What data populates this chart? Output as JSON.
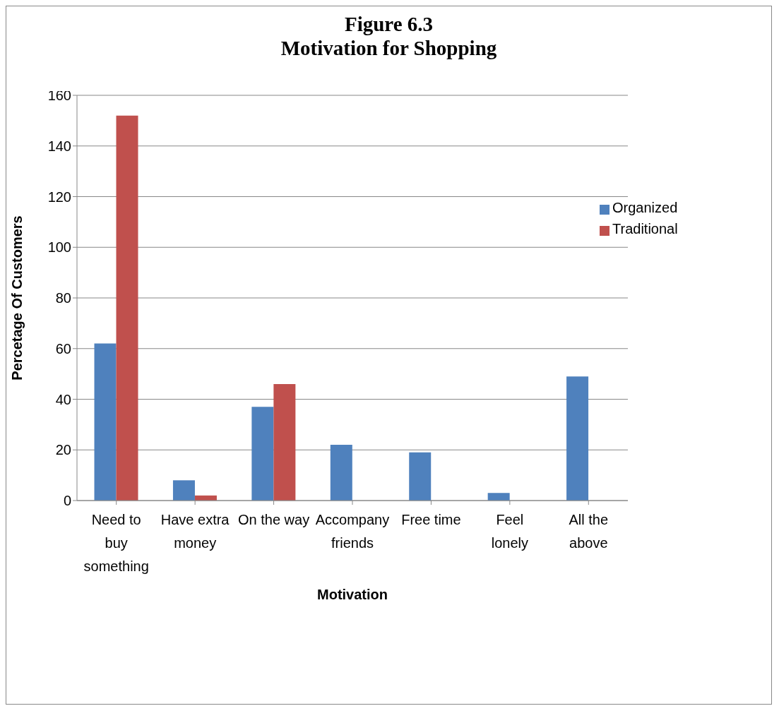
{
  "chart_data": {
    "type": "bar",
    "title": "Figure 6.3",
    "subtitle": "Motivation for Shopping",
    "xlabel": "Motivation",
    "ylabel": "Percetage Of Customers",
    "categories": [
      "Need to buy something",
      "Have extra money",
      "On the way",
      "Accompany friends",
      "Free time",
      "Feel lonely",
      "All the above"
    ],
    "series": [
      {
        "name": "Organized",
        "color": "#4f81bd",
        "values": [
          62,
          8,
          37,
          22,
          19,
          3,
          49
        ]
      },
      {
        "name": "Traditional",
        "color": "#c0504d",
        "values": [
          152,
          2,
          46,
          0,
          0,
          0,
          0
        ]
      }
    ],
    "ylim": [
      0,
      160
    ],
    "yticks": [
      0,
      20,
      40,
      60,
      80,
      100,
      120,
      140,
      160
    ],
    "grid": "y",
    "legend": "top right"
  }
}
